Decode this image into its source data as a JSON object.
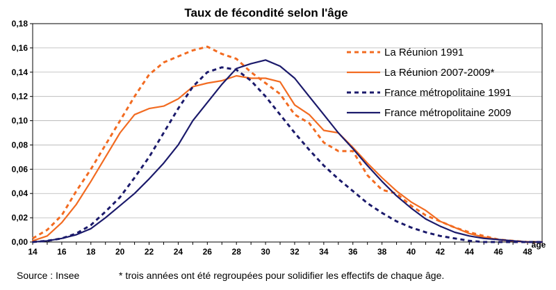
{
  "chart_data": {
    "type": "line",
    "title": "Taux de fécondité selon l'âge",
    "xlabel": "âge",
    "ylabel": "",
    "xlim": [
      14,
      49
    ],
    "ylim": [
      0,
      0.18
    ],
    "grid": true,
    "legend_position": "right",
    "x_ticks": [
      14,
      16,
      18,
      20,
      22,
      24,
      26,
      28,
      30,
      32,
      34,
      36,
      38,
      40,
      42,
      44,
      46,
      48
    ],
    "y_ticks": [
      0,
      0.02,
      0.04,
      0.06,
      0.08,
      0.1,
      0.12,
      0.14,
      0.16,
      0.18
    ],
    "x_tick_labels": [
      "14",
      "16",
      "18",
      "20",
      "22",
      "24",
      "26",
      "28",
      "30",
      "32",
      "34",
      "36",
      "38",
      "40",
      "42",
      "44",
      "46",
      "48"
    ],
    "y_tick_labels": [
      "0,00",
      "0,02",
      "0,04",
      "0,06",
      "0,08",
      "0,10",
      "0,12",
      "0,14",
      "0,16",
      "0,18"
    ],
    "x": [
      14,
      15,
      16,
      17,
      18,
      19,
      20,
      21,
      22,
      23,
      24,
      25,
      26,
      27,
      28,
      29,
      30,
      31,
      32,
      33,
      34,
      35,
      36,
      37,
      38,
      39,
      40,
      41,
      42,
      43,
      44,
      45,
      46,
      47,
      48,
      49
    ],
    "series": [
      {
        "name": "La Réunion 1991",
        "color": "#f26b21",
        "dashed": true,
        "values": [
          0.003,
          0.01,
          0.022,
          0.042,
          0.06,
          0.08,
          0.1,
          0.12,
          0.138,
          0.148,
          0.153,
          0.158,
          0.161,
          0.155,
          0.151,
          0.14,
          0.131,
          0.122,
          0.105,
          0.098,
          0.082,
          0.075,
          0.075,
          0.055,
          0.043,
          0.04,
          0.03,
          0.022,
          0.017,
          0.012,
          0.008,
          0.005,
          0.002,
          0.001,
          0.0,
          0.0
        ]
      },
      {
        "name": "La Réunion 2007-2009*",
        "color": "#f26b21",
        "dashed": false,
        "values": [
          0.001,
          0.005,
          0.016,
          0.031,
          0.05,
          0.07,
          0.09,
          0.105,
          0.11,
          0.112,
          0.118,
          0.128,
          0.131,
          0.133,
          0.137,
          0.135,
          0.135,
          0.132,
          0.113,
          0.105,
          0.092,
          0.09,
          0.078,
          0.065,
          0.053,
          0.042,
          0.033,
          0.026,
          0.017,
          0.012,
          0.007,
          0.004,
          0.002,
          0.001,
          0.0,
          0.0
        ]
      },
      {
        "name": "France métropolitaine 1991",
        "color": "#1b1a6b",
        "dashed": true,
        "values": [
          0.0,
          0.001,
          0.003,
          0.007,
          0.014,
          0.025,
          0.037,
          0.053,
          0.07,
          0.09,
          0.11,
          0.128,
          0.14,
          0.144,
          0.142,
          0.133,
          0.12,
          0.105,
          0.09,
          0.076,
          0.063,
          0.052,
          0.042,
          0.032,
          0.024,
          0.017,
          0.012,
          0.008,
          0.005,
          0.003,
          0.001,
          0.0,
          0.0,
          0.0,
          0.0,
          0.0
        ]
      },
      {
        "name": "France métropolitaine 2009",
        "color": "#1b1a6b",
        "dashed": false,
        "values": [
          0.0,
          0.001,
          0.003,
          0.006,
          0.011,
          0.02,
          0.03,
          0.04,
          0.052,
          0.065,
          0.08,
          0.1,
          0.115,
          0.13,
          0.143,
          0.147,
          0.15,
          0.145,
          0.135,
          0.12,
          0.105,
          0.09,
          0.077,
          0.063,
          0.05,
          0.038,
          0.028,
          0.019,
          0.013,
          0.008,
          0.005,
          0.003,
          0.002,
          0.001,
          0.0,
          0.0
        ]
      }
    ]
  },
  "footer": {
    "source": "Source : Insee",
    "note": "* trois années ont été regroupées pour solidifier les effectifs de chaque âge."
  }
}
